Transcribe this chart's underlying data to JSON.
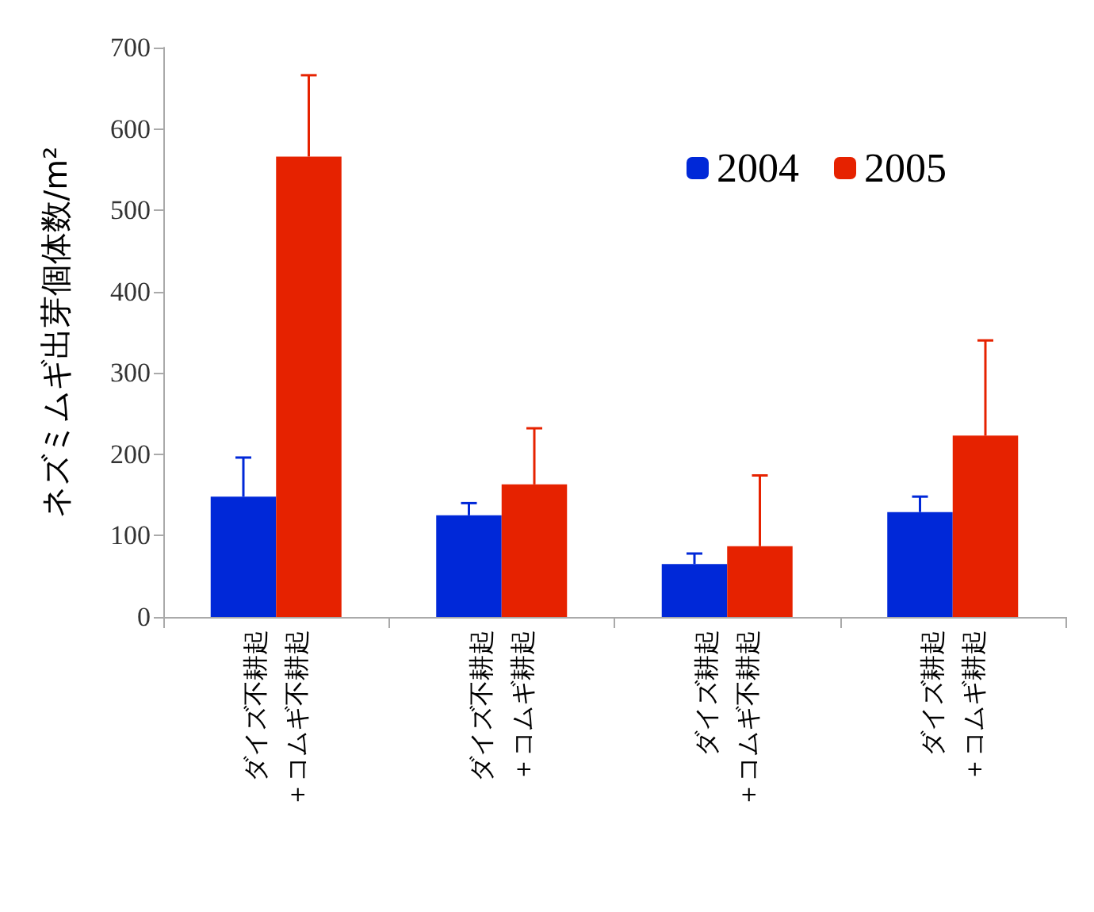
{
  "chart_data": {
    "type": "bar",
    "ylabel": "ネズミムギ出芽個体数/m²",
    "categories": [
      "ダイズ不耕起＋コムギ不耕起",
      "ダイズ不耕起＋コムギ耕起",
      "ダイズ耕起＋コムギ不耕起",
      "ダイズ耕起＋コムギ耕起"
    ],
    "series": [
      {
        "name": "2004",
        "color": "#0028d8",
        "values": [
          148,
          125,
          65,
          129
        ],
        "errors": [
          48,
          15,
          13,
          19
        ]
      },
      {
        "name": "2005",
        "color": "#e62200",
        "values": [
          566,
          163,
          87,
          223
        ],
        "errors": [
          100,
          69,
          87,
          117
        ]
      }
    ],
    "ylim": [
      0,
      700
    ],
    "yticks": [
      0,
      100,
      200,
      300,
      400,
      500,
      600,
      700
    ],
    "grid": false,
    "legend": "top right"
  }
}
